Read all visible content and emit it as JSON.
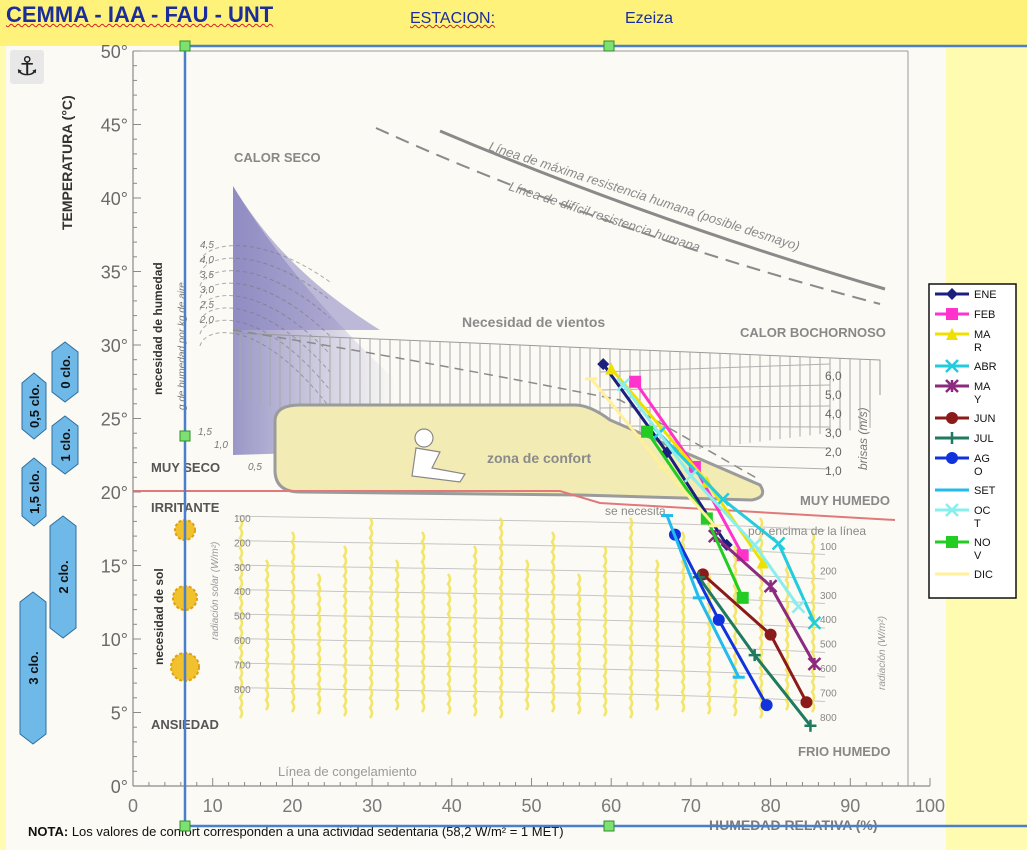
{
  "header": {
    "institution": "CEMMA - IAA - FAU - UNT",
    "station_label": "ESTACION:",
    "station_value": "Ezeiza"
  },
  "toolbar": {
    "anchor_icon": "anchor-icon"
  },
  "colors": {
    "accent": "#1a2d9a",
    "header_bg": "#fff27a",
    "page_bg": "#fffbb0",
    "comfort_fill": "#f2ecb4",
    "clo_fill": "#6fb9e8"
  },
  "chart_data": {
    "type": "line",
    "title": "",
    "xlabel": "HUMEDAD RELATIVA (%)",
    "ylabel": "TEMPERATURA (°C)",
    "xlim": [
      0,
      100
    ],
    "ylim": [
      0,
      50
    ],
    "x_ticks": [
      "0",
      "10",
      "20",
      "30",
      "40",
      "50",
      "60",
      "70",
      "80",
      "90",
      "100"
    ],
    "y_ticks": [
      "0°",
      "5°",
      "10°",
      "15°",
      "20°",
      "25°",
      "30°",
      "35°",
      "40°",
      "45°",
      "50°"
    ],
    "grid": false,
    "legend_position": "right",
    "annotations": {
      "calor_seco": "CALOR SECO",
      "calor_bochornoso": "CALOR BOCHORNOSO",
      "muy_seco": "MUY SECO",
      "irritante": "IRRITANTE",
      "ansiedad": "ANSIEDAD",
      "muy_humedo": "MUY HUMEDO",
      "frio_humedo": "FRIO HUMEDO",
      "zona_confort": "zona de confort",
      "necesidad_vientos": "Necesidad de vientos",
      "max_resistencia": "Línea de máxima resistencia humana (posible desmayo)",
      "dificil_resistencia": "Línea de difícil resistencia humana",
      "congelamiento": "Línea de congelamiento",
      "se_necesita": "se necesita",
      "por_encima": "por encima de la línea",
      "necesidad_humedad": "necesidad de humedad",
      "g_humedad": "g de humedad por kg de aire",
      "necesidad_sol": "necesidad de sol",
      "radiacion_solar": "radiación solar (W/m²)",
      "radiacion_right": "radiación (W/m²)",
      "brisas": "brisas (m/s)",
      "nota_bold": "NOTA:",
      "nota": "Los valores de confort corresponden a una actividad sedentaria (58,2 W/m² = 1 MET)"
    },
    "humidity_scale": [
      "4,5",
      "4,0",
      "3,5",
      "3,0",
      "2,5",
      "2,0",
      "1,5",
      "1,0",
      "0,5"
    ],
    "breeze_scale": [
      "6,0",
      "5,0",
      "4,0",
      "3,0",
      "2,0",
      "1,0"
    ],
    "radiation_scale": [
      "100",
      "200",
      "300",
      "400",
      "500",
      "600",
      "700",
      "800"
    ],
    "clo_levels": [
      "0 clo.",
      "0,5 clo.",
      "1 clo.",
      "1,5 clo.",
      "2 clo.",
      "3 clo."
    ],
    "series": [
      {
        "name": "ENE",
        "label": "ENE",
        "color": "#1b1f7e",
        "marker": "diamond",
        "points": [
          [
            59,
            28.7
          ],
          [
            67,
            22.7
          ],
          [
            74.5,
            16.4
          ]
        ]
      },
      {
        "name": "FEB",
        "label": "FEB",
        "color": "#ff33cc",
        "marker": "square",
        "points": [
          [
            63,
            27.5
          ],
          [
            70.5,
            21.7
          ],
          [
            76.5,
            15.7
          ]
        ]
      },
      {
        "name": "MAR",
        "label": "MA R",
        "color": "#f0e000",
        "marker": "triangle",
        "points": [
          [
            60,
            28.4
          ],
          [
            72,
            20.7
          ],
          [
            79,
            15.2
          ]
        ]
      },
      {
        "name": "ABR",
        "label": "ABR",
        "color": "#22ccdd",
        "marker": "x",
        "points": [
          [
            66,
            24
          ],
          [
            74,
            19.5
          ],
          [
            81,
            16.5
          ],
          [
            85.5,
            11.1
          ]
        ]
      },
      {
        "name": "MAY",
        "label": "MA Y",
        "color": "#8b2a7e",
        "marker": "star",
        "points": [
          [
            73,
            17
          ],
          [
            80,
            13.6
          ],
          [
            85.5,
            8.3
          ]
        ]
      },
      {
        "name": "JUN",
        "label": "JUN",
        "color": "#8b1a1a",
        "marker": "circle",
        "points": [
          [
            71.5,
            14.4
          ],
          [
            80,
            10.3
          ],
          [
            84.5,
            5.7
          ]
        ]
      },
      {
        "name": "JUL",
        "label": "JUL",
        "color": "#1f7a5e",
        "marker": "plus",
        "points": [
          [
            71,
            14.2
          ],
          [
            78,
            8.9
          ],
          [
            85,
            4.1
          ]
        ]
      },
      {
        "name": "AGO",
        "label": "AG O",
        "color": "#1133dd",
        "marker": "circle",
        "points": [
          [
            68,
            17.1
          ],
          [
            73.5,
            11.3
          ],
          [
            79.5,
            5.5
          ]
        ]
      },
      {
        "name": "SET",
        "label": "SET",
        "color": "#22bbee",
        "marker": "dash",
        "points": [
          [
            67,
            18.4
          ],
          [
            71,
            12.8
          ],
          [
            76,
            7.4
          ]
        ]
      },
      {
        "name": "OCT",
        "label": "OC T",
        "color": "#88eeee",
        "marker": "x",
        "points": [
          [
            61.5,
            27.3
          ],
          [
            70,
            21.1
          ],
          [
            78,
            16.4
          ],
          [
            83.5,
            12.2
          ]
        ]
      },
      {
        "name": "NOV",
        "label": "NO V",
        "color": "#22cc22",
        "marker": "square",
        "points": [
          [
            64.5,
            24.1
          ],
          [
            72,
            18.2
          ],
          [
            76.5,
            12.8
          ]
        ]
      },
      {
        "name": "DIC",
        "label": "DIC",
        "color": "#fff099",
        "marker": "dash",
        "points": [
          [
            57.5,
            27.7
          ],
          [
            66.5,
            21.7
          ],
          [
            73,
            17.7
          ]
        ]
      }
    ]
  }
}
